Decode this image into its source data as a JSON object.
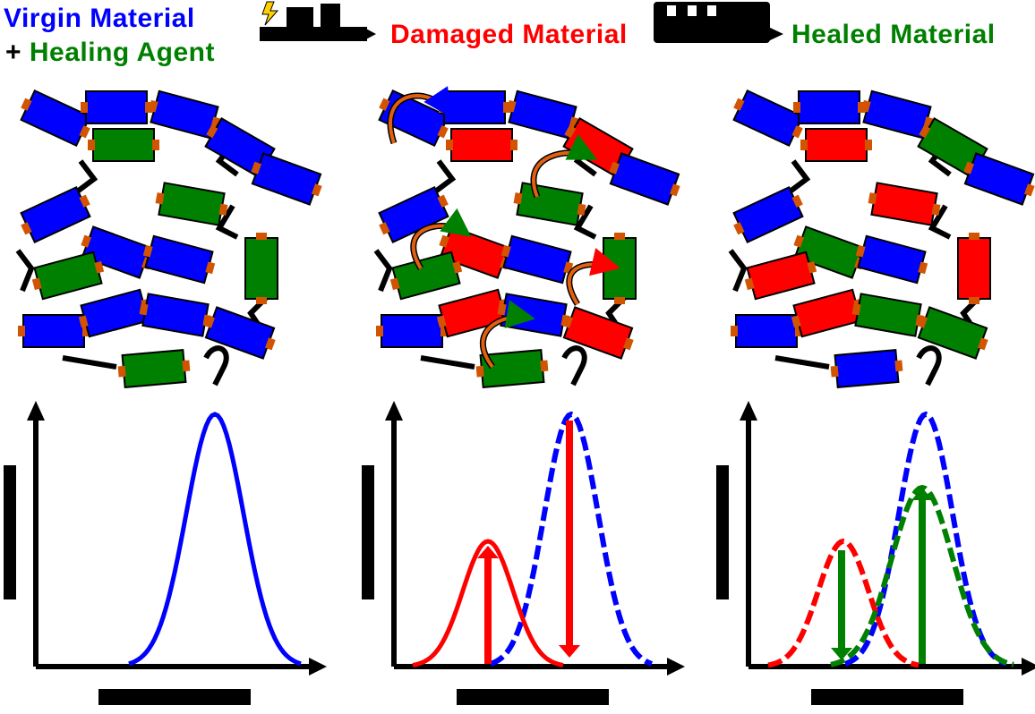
{
  "labels": {
    "virgin_material": "Virgin Material",
    "plus": "+",
    "healing_agent": "Healing Agent",
    "damaged_material": "Damaged Material",
    "healed_material": "Healed Material"
  },
  "colors": {
    "virgin": "#0000ff",
    "healing_agent": "#008000",
    "damaged": "#ff0000",
    "end_cap": "#d35400",
    "arrow": "#e06010",
    "outline": "#000000"
  },
  "icons": {
    "damage_step": "lightning-hammer-icon",
    "healing_step": "heat-icon"
  },
  "panels": [
    {
      "name": "virgin",
      "curves": [
        "virgin"
      ]
    },
    {
      "name": "damaged",
      "curves": [
        "damaged",
        "virgin-dashed"
      ],
      "arrows": [
        "down-red",
        "up-red"
      ]
    },
    {
      "name": "healed",
      "curves": [
        "damaged-dashed",
        "virgin-dashed",
        "healed-dashed"
      ],
      "arrows": [
        "down-green",
        "up-green"
      ]
    }
  ]
}
